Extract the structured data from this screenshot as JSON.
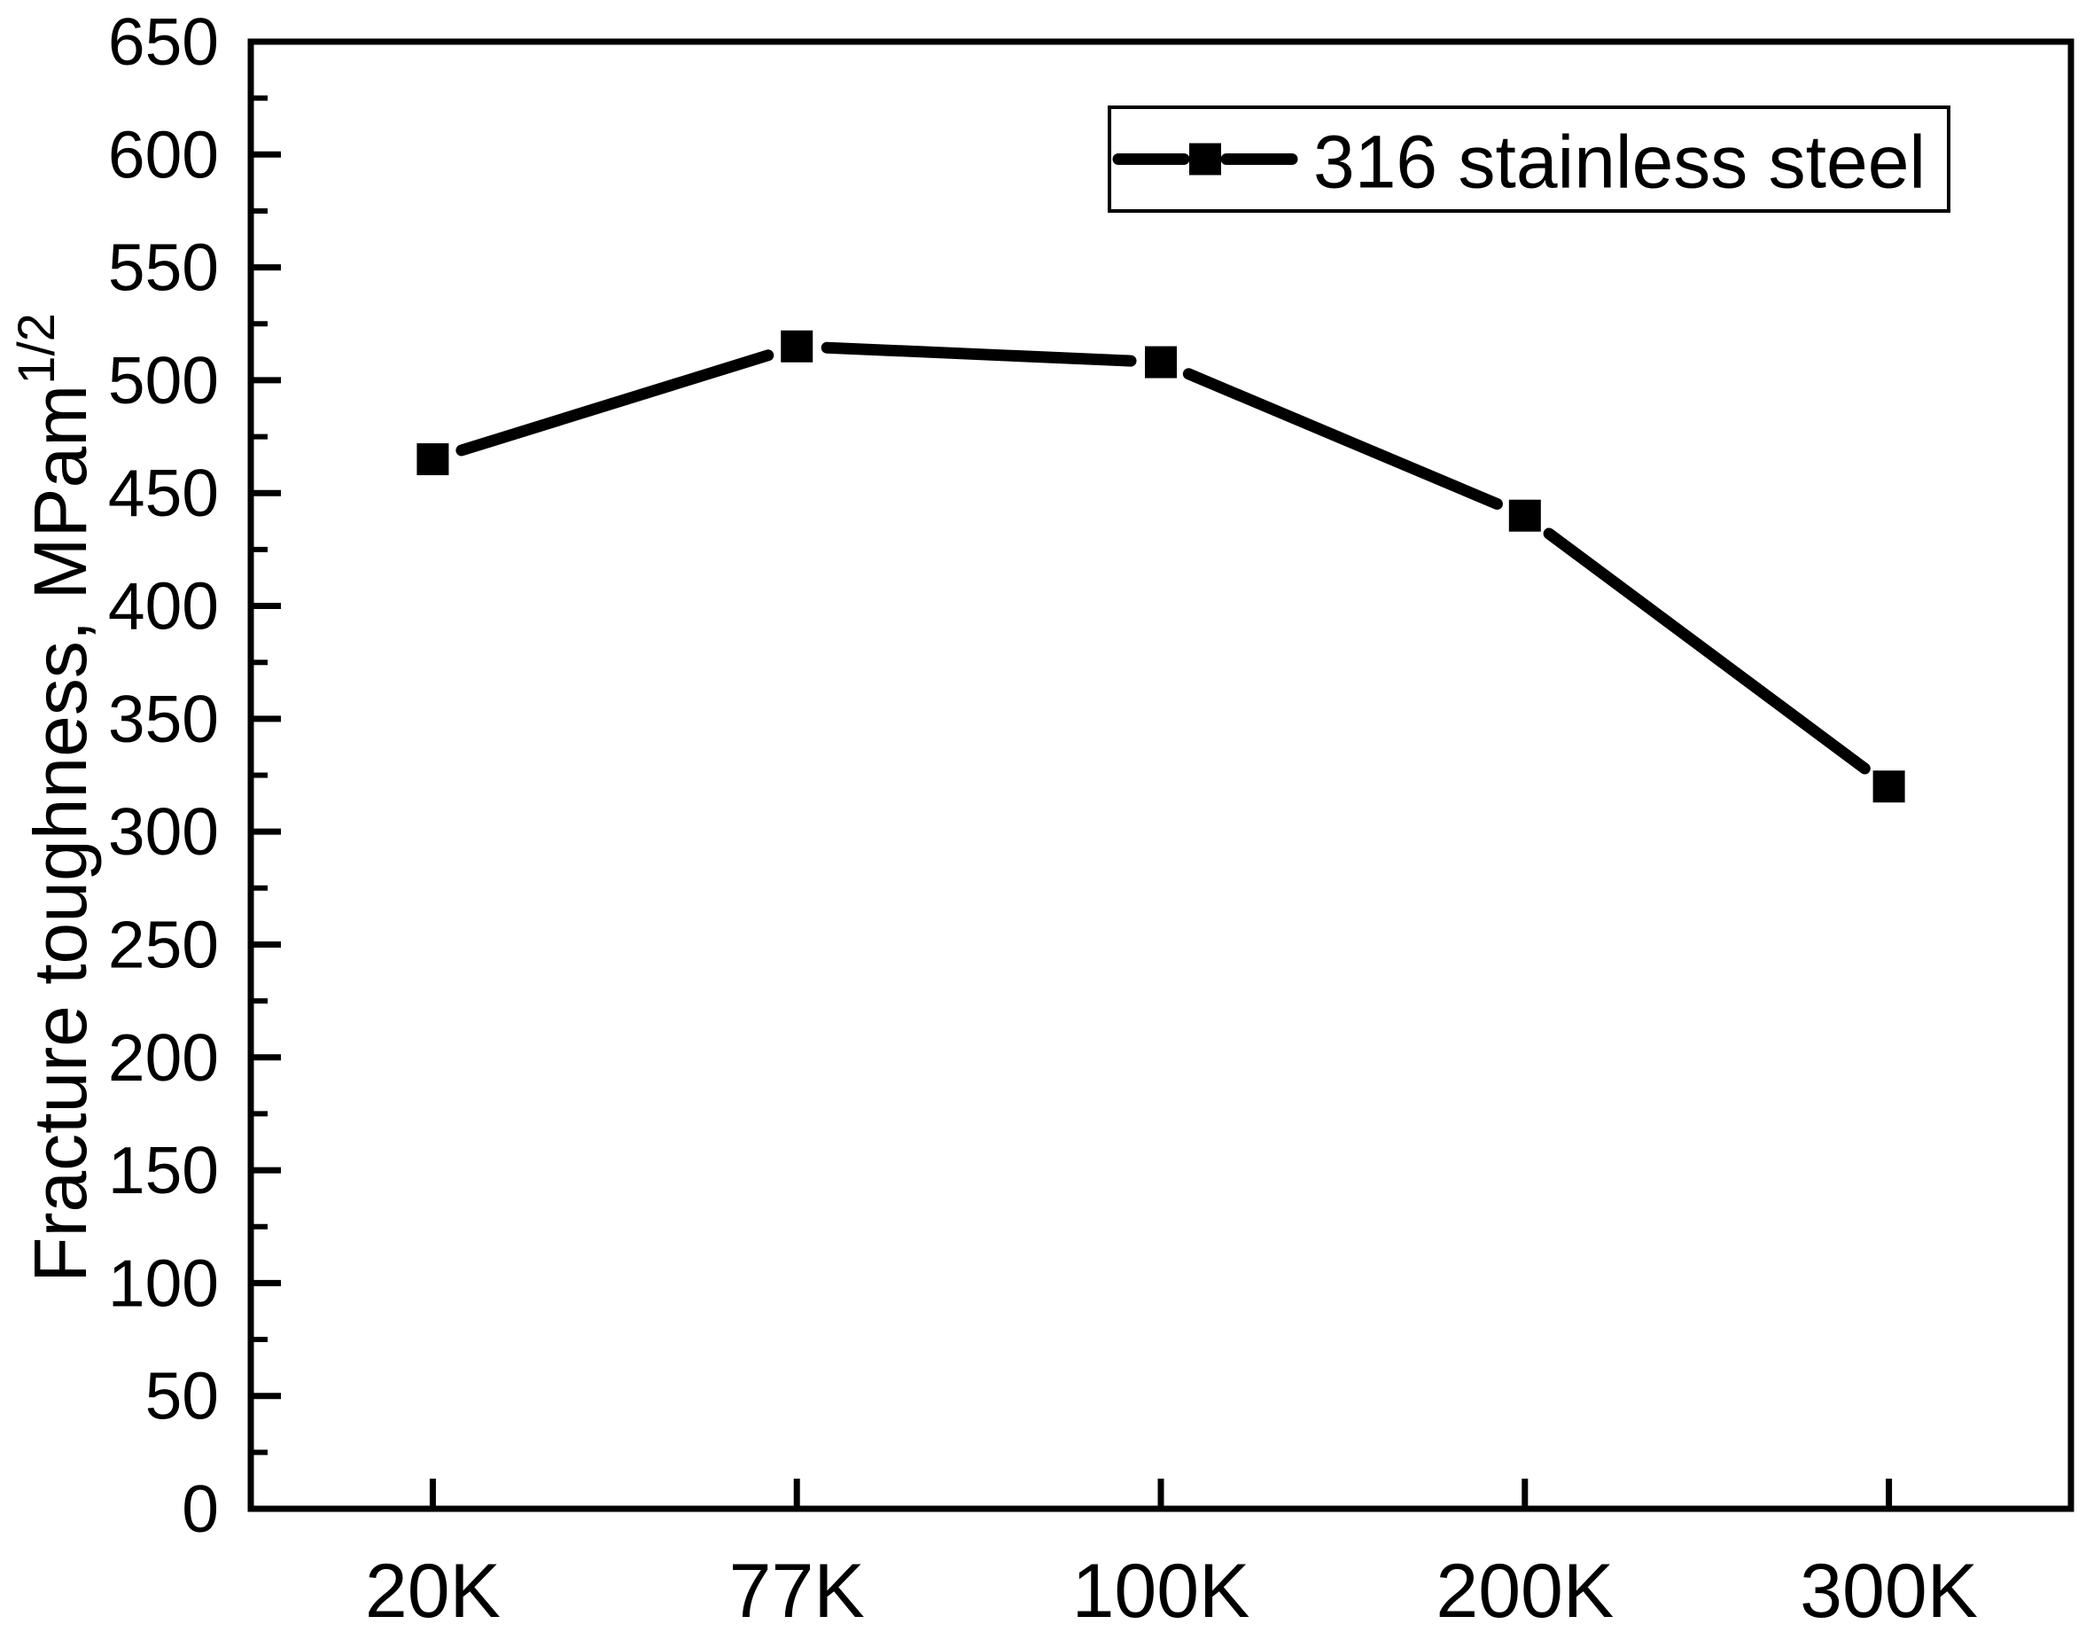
{
  "chart_data": {
    "type": "line",
    "title": "",
    "categories": [
      "20K",
      "77K",
      "100K",
      "200K",
      "300K"
    ],
    "series": [
      {
        "name": "316 stainless steel",
        "values": [
          465,
          515,
          508,
          440,
          320
        ],
        "color": "#000000",
        "marker": "square"
      }
    ],
    "xlabel": "",
    "ylabel_base": "Fracture toughness, MPam",
    "ylabel_superscript": "1/2",
    "ylim": [
      0,
      650
    ],
    "y_major_ticks": [
      0,
      50,
      100,
      150,
      200,
      250,
      300,
      350,
      400,
      450,
      500,
      550,
      600,
      650
    ],
    "y_minor_step": 25,
    "grid": false,
    "legend_position": "top-right",
    "background_color": "#ffffff",
    "axis_color": "#000000"
  }
}
